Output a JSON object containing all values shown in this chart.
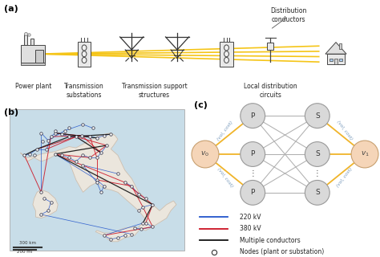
{
  "panel_a_label": "(a)",
  "panel_b_label": "(b)",
  "panel_c_label": "(c)",
  "power_plant_label": "Power plant",
  "trans_sub_label": "Transmission\nsubstations",
  "trans_support_label": "Transmission support\nstructures",
  "dist_conductors_label": "Distribution\nconductors",
  "local_dist_label": "Local distribution\ncircuits",
  "legend_220": "220 kV",
  "legend_380": "380 kV",
  "legend_multi": "Multiple conductors",
  "legend_nodes": "Nodes (plant or substation)",
  "node_color_P": "#d9d9d9",
  "node_color_S": "#d9d9d9",
  "node_color_v": "#f5d5b8",
  "edge_color_yellow": "#f0b429",
  "edge_color_gray": "#b0b0b0",
  "background_color": "#ffffff",
  "text_color_blue_light": "#7799bb",
  "map_bg_color": "#c8dde8",
  "map_land_color": "#f0e8dc",
  "italy_edge_color": "#ccbbaa"
}
